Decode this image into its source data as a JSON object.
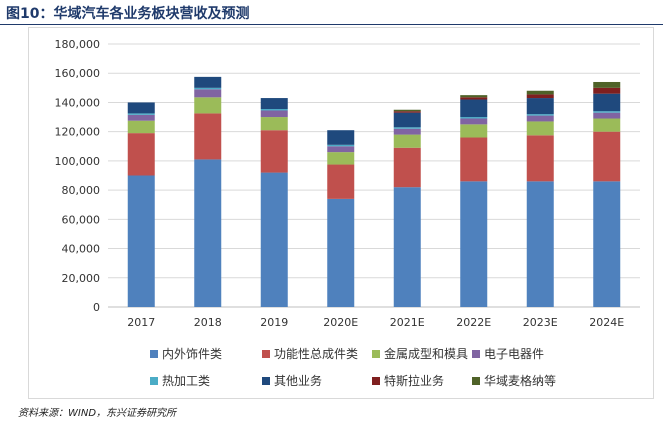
{
  "figure": {
    "title": "图10：华域汽车各业务板块营收及预测",
    "source": "资料来源：WIND，东兴证券研究所"
  },
  "chart_data": {
    "type": "bar",
    "stacked": true,
    "categories": [
      "2017",
      "2018",
      "2019",
      "2020E",
      "2021E",
      "2022E",
      "2023E",
      "2024E"
    ],
    "ylim": [
      0,
      180000
    ],
    "yticks": [
      0,
      20000,
      40000,
      60000,
      80000,
      100000,
      120000,
      140000,
      160000,
      180000
    ],
    "ytick_labels": [
      "0",
      "20,000",
      "40,000",
      "60,000",
      "80,000",
      "100,000",
      "120,000",
      "140,000",
      "160,000",
      "180,000"
    ],
    "grid": true,
    "legend_position": "bottom",
    "series": [
      {
        "name": "内外饰件类",
        "color": "#4f81bd",
        "values": [
          90000,
          101000,
          92000,
          74000,
          82000,
          86000,
          86000,
          86000
        ]
      },
      {
        "name": "功能性总成件类",
        "color": "#c0504d",
        "values": [
          29000,
          31500,
          29000,
          23500,
          27000,
          30000,
          31500,
          34000
        ]
      },
      {
        "name": "金属成型和模具",
        "color": "#9bbb59",
        "values": [
          8500,
          11000,
          9000,
          8500,
          9000,
          9000,
          9500,
          9000
        ]
      },
      {
        "name": "电子电器件",
        "color": "#8064a2",
        "values": [
          4000,
          5500,
          4500,
          4000,
          4000,
          4000,
          4000,
          4000
        ]
      },
      {
        "name": "热加工类",
        "color": "#4bacc6",
        "values": [
          1000,
          1000,
          1000,
          1000,
          1000,
          1000,
          1000,
          1000
        ]
      },
      {
        "name": "其他业务",
        "color": "#1f497d",
        "values": [
          7500,
          7500,
          7500,
          10000,
          10000,
          12000,
          11000,
          12000
        ]
      },
      {
        "name": "特斯拉业务",
        "color": "#7f1f1f",
        "values": [
          0,
          0,
          0,
          0,
          1000,
          1500,
          2500,
          4000
        ]
      },
      {
        "name": "华域麦格纳等",
        "color": "#4f6228",
        "values": [
          0,
          0,
          0,
          0,
          1000,
          1500,
          2500,
          4000
        ]
      }
    ]
  }
}
